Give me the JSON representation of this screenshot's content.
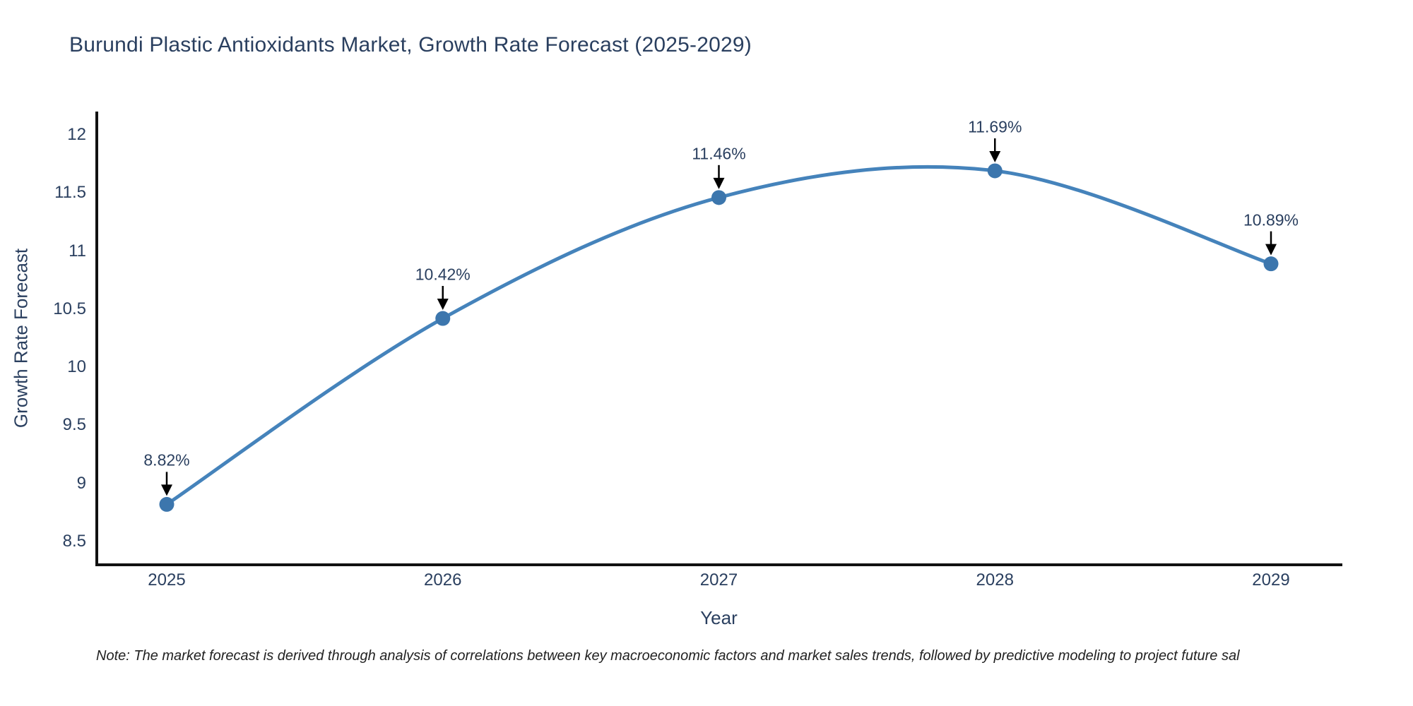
{
  "title": "Burundi Plastic Antioxidants Market, Growth Rate Forecast (2025-2029)",
  "note": "Note: The market forecast is derived through analysis of correlations between key macroeconomic factors and market sales trends, followed by predictive modeling to project future sal",
  "chart_data": {
    "type": "line",
    "x": [
      "2025",
      "2026",
      "2027",
      "2028",
      "2029"
    ],
    "series": [
      {
        "name": "Growth Rate Forecast",
        "values": [
          8.82,
          10.42,
          11.46,
          11.69,
          10.89
        ]
      }
    ],
    "point_labels": [
      "8.82%",
      "10.42%",
      "11.46%",
      "11.69%",
      "10.89%"
    ],
    "title": "Burundi Plastic Antioxidants Market, Growth Rate Forecast (2025-2029)",
    "xlabel": "Year",
    "ylabel": "Growth Rate Forecast",
    "yticks": [
      12,
      11.5,
      11,
      10.5,
      10,
      9.5,
      9,
      8.5
    ],
    "ylim": [
      8.3,
      12.2
    ],
    "grid": false,
    "legend": "none",
    "line_style": "smooth-spline",
    "colors": {
      "line": "#4583bb",
      "marker": "#3c76ad",
      "axis": "#111111",
      "text": "#2a3f5f",
      "annotation_arrow": "#000000"
    }
  }
}
